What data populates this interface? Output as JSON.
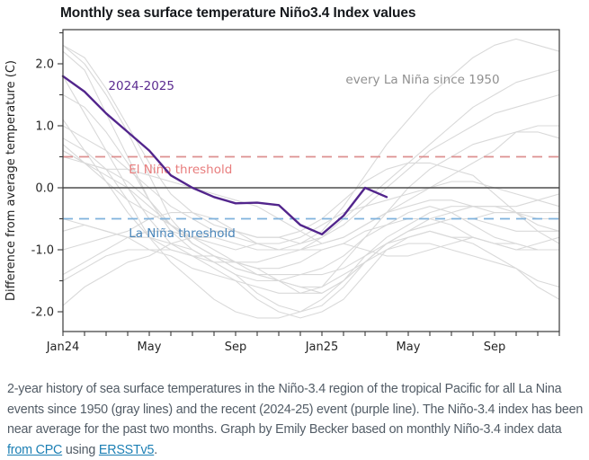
{
  "page": {
    "caption": {
      "text_before_link1": "2-year history of sea surface temperatures in the Niño-3.4 region of the tropical Pacific for all La Nina events since 1950 (gray lines) and the recent (2024-25) event (purple line). The Niño-3.4 index has been near average for the past two months. Graph by Emily Becker based on monthly Niño-3.4 index data ",
      "link1": "from CPC",
      "text_between_links": " using ",
      "link2": "ERSSTv5",
      "text_after_link2": "."
    }
  },
  "chart_data": {
    "type": "line",
    "title": "Monthly sea surface temperature Niño3.4 Index values",
    "xlabel": "",
    "ylabel": "Difference from average temperature (C)",
    "grid": false,
    "legend_position": "in-plot text annotations",
    "ylim": [
      -2.32,
      2.55
    ],
    "x_months": [
      "Jan24",
      "Feb24",
      "Mar24",
      "Apr24",
      "May24",
      "Jun24",
      "Jul24",
      "Aug24",
      "Sep24",
      "Oct24",
      "Nov24",
      "Dec24",
      "Jan25",
      "Feb25",
      "Mar25",
      "Apr25",
      "May25",
      "Jun25",
      "Jul25",
      "Aug25",
      "Sep25",
      "Oct25",
      "Nov25",
      "Dec25"
    ],
    "x_tick_labels": [
      {
        "index": 0,
        "label": "Jan24"
      },
      {
        "index": 4,
        "label": "May"
      },
      {
        "index": 8,
        "label": "Sep"
      },
      {
        "index": 12,
        "label": "Jan25"
      },
      {
        "index": 16,
        "label": "May"
      },
      {
        "index": 20,
        "label": "Sep"
      }
    ],
    "y_ticks_major": [
      2.0,
      1.0,
      0.0,
      -1.0,
      -2.0
    ],
    "y_tick_labels": [
      "2.0",
      "1.0",
      "0.0",
      "-1.0",
      "-2.0"
    ],
    "y_ticks_minor": [
      2.5,
      1.5,
      0.5,
      -0.5,
      -1.5
    ],
    "zero_line": {
      "value": 0.0,
      "color": "#4d4d4d"
    },
    "thresholds": {
      "el_nino": {
        "value": 0.5,
        "label": "El Niño threshold",
        "line_color": "#dd9090",
        "label_color": "#e87d7d",
        "label_x_month": 3.05,
        "label_y_value": 0.23
      },
      "la_nina": {
        "value": -0.5,
        "label": "La Niña threshold",
        "line_color": "#7fb2dd",
        "label_color": "#4a86ba",
        "label_x_month": 3.05,
        "label_y_value": -0.8
      }
    },
    "annotations": [
      {
        "text": "2024-2025",
        "x_month": 2.1,
        "y_value": 1.58,
        "color": "#5b2b90",
        "size": 13.5
      },
      {
        "text": "every La Niña since 1950",
        "x_month": 13.1,
        "y_value": 1.68,
        "color": "#909090",
        "size": 13.5
      }
    ],
    "series_current": {
      "name": "2024-2025",
      "color": "#52258c",
      "months_covered": "Jan24–Apr25",
      "values": [
        1.8,
        1.55,
        1.2,
        0.9,
        0.6,
        0.2,
        0.0,
        -0.15,
        -0.25,
        -0.24,
        -0.28,
        -0.6,
        -0.75,
        -0.45,
        0.0,
        -0.15
      ]
    },
    "series_background": {
      "name": "every La Niña since 1950",
      "color": "#d9d9d9",
      "events": [
        [
          2.3,
          2.0,
          1.5,
          0.9,
          0.2,
          -0.5,
          -0.9,
          -1.1,
          -1.3,
          -1.4,
          -1.5,
          -1.6,
          -1.7,
          -1.5,
          -1.2,
          -1.0,
          -0.9,
          -0.9,
          -1.0,
          -1.1,
          -1.2,
          -1.3,
          -1.5,
          -1.6
        ],
        [
          1.8,
          1.2,
          0.6,
          0.0,
          -0.5,
          -0.9,
          -1.1,
          -1.3,
          -1.5,
          -1.8,
          -2.0,
          -2.1,
          -2.0,
          -1.8,
          -1.4,
          -1.0,
          -0.8,
          -0.7,
          -0.8,
          -0.9,
          -1.1,
          -1.3,
          -1.6,
          -1.8
        ],
        [
          2.2,
          1.9,
          1.2,
          0.5,
          -0.2,
          -0.6,
          -0.8,
          -0.9,
          -1.0,
          -0.9,
          -0.9,
          -0.8,
          -0.6,
          -0.4,
          -0.3,
          -0.2,
          -0.1,
          0.0,
          0.1,
          0.1,
          0.0,
          -0.1,
          -0.2,
          -0.3
        ],
        [
          2.3,
          2.1,
          1.6,
          1.0,
          0.4,
          -0.1,
          -0.4,
          -0.6,
          -0.7,
          -0.8,
          -0.8,
          -0.7,
          -0.5,
          -0.2,
          0.1,
          0.3,
          0.4,
          0.4,
          0.3,
          0.2,
          -0.1,
          -0.4,
          -0.7,
          -0.9
        ],
        [
          1.5,
          1.3,
          0.9,
          0.4,
          -0.2,
          -0.7,
          -1.0,
          -1.2,
          -1.4,
          -1.5,
          -1.5,
          -1.4,
          -1.3,
          -1.1,
          -0.8,
          -0.6,
          -0.4,
          -0.3,
          -0.4,
          -0.6,
          -0.8,
          -0.9,
          -1.0,
          -1.0
        ],
        [
          0.5,
          0.4,
          0.2,
          0.0,
          -0.3,
          -0.6,
          -0.9,
          -1.1,
          -1.2,
          -1.3,
          -1.3,
          -1.2,
          -1.0,
          -0.9,
          -0.7,
          -0.6,
          -0.5,
          -0.5,
          -0.6,
          -0.8,
          -0.9,
          -1.0,
          -1.0,
          -1.0
        ],
        [
          0.7,
          0.4,
          0.1,
          -0.2,
          -0.4,
          -0.6,
          -0.8,
          -1.0,
          -1.2,
          -1.4,
          -1.5,
          -1.6,
          -1.6,
          -1.4,
          -1.2,
          -0.9,
          -0.7,
          -0.5,
          -0.4,
          -0.3,
          -0.3,
          -0.4,
          -0.6,
          -0.7
        ],
        [
          0.8,
          0.6,
          0.3,
          -0.2,
          -0.8,
          -1.2,
          -1.5,
          -1.8,
          -2.0,
          -2.1,
          -2.1,
          -2.0,
          -1.8,
          -1.5,
          -1.1,
          -0.8,
          -0.6,
          -0.4,
          -0.3,
          -0.3,
          -0.3,
          -0.3,
          -0.2,
          -0.1
        ],
        [
          1.0,
          0.8,
          0.6,
          0.3,
          0.0,
          -0.3,
          -0.5,
          -0.7,
          -0.8,
          -0.9,
          -1.0,
          -1.0,
          -0.9,
          -0.8,
          -0.6,
          -0.4,
          -0.3,
          -0.2,
          -0.2,
          -0.3,
          -0.4,
          -0.4,
          -0.5,
          -0.5
        ],
        [
          0.6,
          0.4,
          0.3,
          0.1,
          -0.2,
          -0.6,
          -0.9,
          -1.1,
          -1.3,
          -1.4,
          -1.4,
          -1.4,
          -1.4,
          -1.3,
          -1.1,
          -0.9,
          -0.8,
          -0.7,
          -0.8,
          -0.8,
          -0.9,
          -0.9,
          -1.0,
          -1.0
        ],
        [
          -1.5,
          -1.3,
          -1.1,
          -1.0,
          -1.0,
          -1.0,
          -1.1,
          -1.1,
          -1.2,
          -1.3,
          -1.5,
          -1.7,
          -1.7,
          -1.5,
          -1.2,
          -0.9,
          -0.7,
          -0.6,
          -0.5,
          -0.5,
          -0.6,
          -0.7,
          -0.7,
          -0.7
        ],
        [
          -0.7,
          -0.6,
          -0.7,
          -0.8,
          -0.8,
          -0.9,
          -1.0,
          -1.2,
          -1.4,
          -1.7,
          -1.9,
          -2.0,
          -1.9,
          -1.6,
          -1.2,
          -0.9,
          -0.7,
          -0.6,
          -0.5,
          -0.5,
          -0.4,
          -0.4,
          -0.4,
          -0.4
        ],
        [
          -1.0,
          -0.9,
          -0.8,
          -0.7,
          -0.5,
          -0.4,
          -0.4,
          -0.5,
          -0.7,
          -0.9,
          -1.0,
          -1.0,
          -1.0,
          -0.9,
          -1.0,
          -1.1,
          -1.1,
          -1.0,
          -0.9,
          -0.8,
          -0.9,
          -1.0,
          -0.9,
          -0.8
        ],
        [
          -1.9,
          -1.6,
          -1.4,
          -1.2,
          -1.1,
          -0.9,
          -0.8,
          -0.7,
          -0.7,
          -0.8,
          -0.8,
          -0.9,
          -0.8,
          -0.6,
          -0.3,
          0.0,
          0.3,
          0.6,
          0.8,
          1.0,
          1.2,
          1.3,
          1.4,
          1.5
        ],
        [
          1.1,
          0.6,
          0.1,
          -0.4,
          -0.8,
          -1.0,
          -1.1,
          -1.2,
          -1.2,
          -1.2,
          -1.1,
          -1.0,
          -0.8,
          -0.5,
          -0.2,
          0.1,
          0.4,
          0.7,
          1.0,
          1.3,
          1.5,
          1.7,
          1.8,
          1.9
        ],
        [
          -1.4,
          -1.2,
          -1.0,
          -0.8,
          -0.7,
          -0.7,
          -0.8,
          -0.8,
          -0.9,
          -1.0,
          -1.0,
          -0.9,
          -0.7,
          -0.3,
          0.2,
          0.7,
          1.1,
          1.5,
          1.8,
          2.1,
          2.3,
          2.4,
          2.3,
          2.2
        ],
        [
          -0.5,
          -0.6,
          -0.7,
          -0.8,
          -1.0,
          -1.1,
          -1.3,
          -1.4,
          -1.5,
          -1.6,
          -1.7,
          -1.7,
          -1.6,
          -1.2,
          -0.8,
          -0.4,
          0.0,
          0.3,
          0.5,
          0.7,
          0.8,
          0.9,
          0.9,
          0.8
        ],
        [
          0.6,
          0.4,
          0.3,
          0.3,
          0.2,
          0.1,
          0.0,
          -0.1,
          -0.2,
          -0.3,
          -0.5,
          -0.7,
          -0.9,
          -0.8,
          -0.6,
          -0.4,
          -0.2,
          0.0,
          0.2,
          0.4,
          0.6,
          0.9,
          1.0,
          1.0
        ]
      ]
    }
  }
}
